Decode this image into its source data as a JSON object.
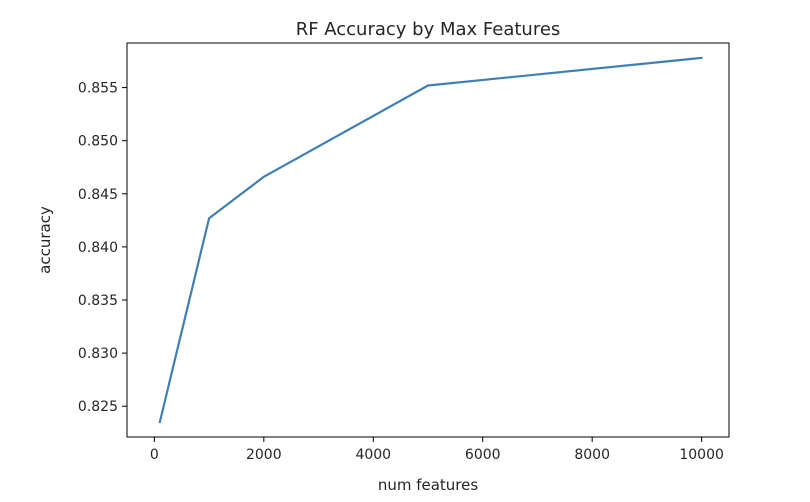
{
  "chart_data": {
    "type": "line",
    "title": "RF Accuracy by Max Features",
    "xlabel": "num features",
    "ylabel": "accuracy",
    "x": [
      100,
      1000,
      2000,
      5000,
      10000
    ],
    "series": [
      {
        "values": [
          0.8235,
          0.8427,
          0.8466,
          0.8552,
          0.8578
        ]
      }
    ],
    "xlim": [
      -500,
      10500
    ],
    "ylim": [
      0.8221,
      0.8592
    ],
    "xticks": [
      0,
      2000,
      4000,
      6000,
      8000,
      10000
    ],
    "xtick_labels": [
      "0",
      "2000",
      "4000",
      "6000",
      "8000",
      "10000"
    ],
    "yticks": [
      0.825,
      0.83,
      0.835,
      0.84,
      0.845,
      0.85,
      0.855
    ],
    "ytick_labels": [
      "0.825",
      "0.830",
      "0.835",
      "0.840",
      "0.845",
      "0.850",
      "0.855"
    ],
    "grid": false,
    "line_color": "#3f7fb6"
  }
}
